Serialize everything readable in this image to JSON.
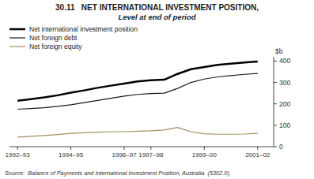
{
  "chart_data": {
    "type": "line",
    "title": "30.11   NET INTERNATIONAL INVESTMENT POSITION,",
    "subtitle": "Level at end of period",
    "y_label": "$b",
    "source": "Source:  Balance of Payments and International Investment Position, Australia  (5302.0).",
    "x": [
      0,
      0.5,
      1,
      1.5,
      2,
      2.5,
      3,
      3.5,
      4,
      4.5,
      5,
      5.5,
      6,
      6.5,
      7,
      7.5,
      8,
      8.5,
      9
    ],
    "xlim": [
      -0.3,
      9.6
    ],
    "xticks": [
      {
        "value": 0,
        "label": "1992–93"
      },
      {
        "value": 2,
        "label": "1994–95"
      },
      {
        "value": 4,
        "label": "1996–97"
      },
      {
        "value": 5,
        "label": "1997–98"
      },
      {
        "value": 7,
        "label": "1999–00"
      },
      {
        "value": 9,
        "label": "2001–02"
      }
    ],
    "ylim": [
      0,
      420
    ],
    "yticks": [
      0,
      100,
      200,
      300,
      400
    ],
    "legend": "upper left",
    "series": [
      {
        "name": "Net international investment position",
        "color": "#000000",
        "values": [
          215,
          222,
          230,
          240,
          252,
          263,
          275,
          285,
          295,
          305,
          310,
          313,
          340,
          362,
          372,
          382,
          388,
          393,
          398
        ]
      },
      {
        "name": "Net foreign debt",
        "color": "#1a1a1a",
        "values": [
          175,
          178,
          182,
          188,
          196,
          206,
          216,
          226,
          236,
          244,
          248,
          250,
          272,
          300,
          316,
          326,
          332,
          338,
          342
        ]
      },
      {
        "name": "Net foreign equity",
        "color": "#a09060",
        "values": [
          45,
          48,
          52,
          57,
          62,
          65,
          68,
          70,
          70,
          72,
          74,
          78,
          90,
          70,
          60,
          58,
          58,
          59,
          62
        ]
      }
    ]
  }
}
